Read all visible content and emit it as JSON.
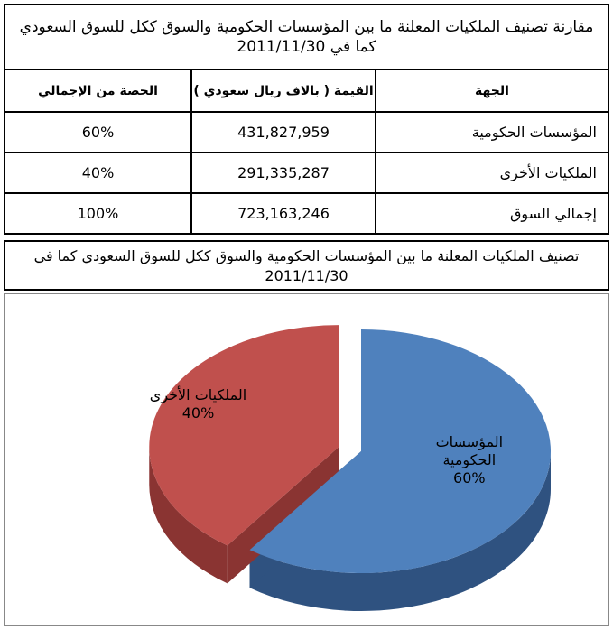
{
  "table": {
    "title": "مقارنة تصنيف الملكيات المعلنة ما بين المؤسسات الحكومية والسوق ككل للسوق السعودي كما في 2011/11/30",
    "headers": [
      "الجهة",
      "القيمة ( بالاف ريال سعودي )",
      "الحصة من الإجمالي"
    ],
    "rows": [
      [
        "المؤسسات الحكومية",
        "431,827,959",
        "60%"
      ],
      [
        "الملكيات الأخرى",
        "291,335,287",
        "40%"
      ],
      [
        "إجمالي السوق",
        "723,163,246",
        "100%"
      ]
    ]
  },
  "chart_data": {
    "type": "pie",
    "title": "تصنيف الملكيات المعلنة ما بين المؤسسات الحكومية والسوق ككل للسوق السعودي  كما في 2011/11/30",
    "categories": [
      "المؤسسات الحكومية",
      "الملكيات الأخرى"
    ],
    "values": [
      60,
      40
    ],
    "value_labels": [
      "60%",
      "40%"
    ],
    "colors": [
      "#4f81bd",
      "#c0504d"
    ],
    "side_colors": [
      "#2f5280",
      "#8a3432"
    ],
    "exploded": [
      false,
      true
    ]
  }
}
